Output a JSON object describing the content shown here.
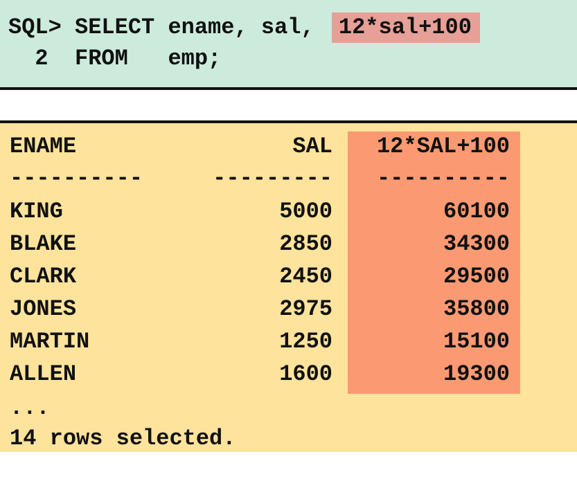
{
  "query": {
    "line1_prompt": "SQL> SELECT ename, sal, ",
    "line1_highlight": "12*sal+100",
    "line2": "  2  FROM   emp;"
  },
  "results": {
    "headers": [
      "ENAME",
      "SAL",
      "12*SAL+100"
    ],
    "separators": [
      "----------",
      "---------",
      "----------"
    ],
    "rows": [
      [
        "KING",
        "5000",
        "60100"
      ],
      [
        "BLAKE",
        "2850",
        "34300"
      ],
      [
        "CLARK",
        "2450",
        "29500"
      ],
      [
        "JONES",
        "2975",
        "35800"
      ],
      [
        "MARTIN",
        "1250",
        "15100"
      ],
      [
        "ALLEN",
        "1600",
        "19300"
      ]
    ],
    "ellipsis": "...",
    "footer": "14 rows selected."
  },
  "colors": {
    "query_bg": "#cdebdc",
    "query_highlight": "#e7a097",
    "result_bg": "#fde39c",
    "column_highlight": "#fb9a72"
  }
}
